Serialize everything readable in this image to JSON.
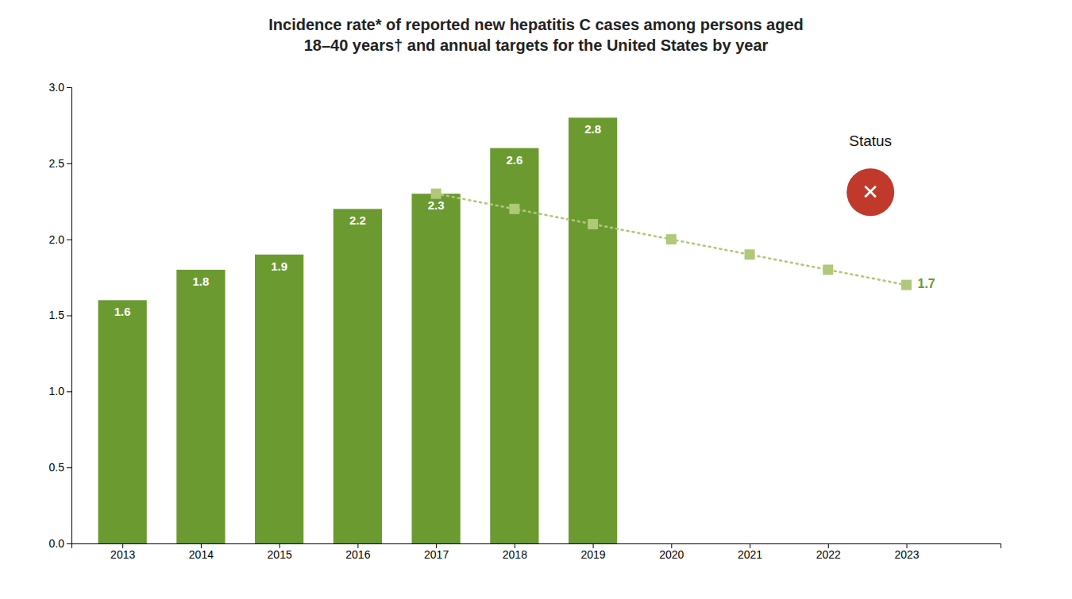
{
  "chart_data": {
    "type": "bar",
    "title": "Incidence rate* of reported new hepatitis C cases among persons aged\n18–40 years† and annual targets for the United States by year",
    "series": [
      {
        "type": "bar",
        "color": "#6b9a30",
        "data_labels": true,
        "x": [
          2013,
          2014,
          2015,
          2016,
          2017,
          2018,
          2019
        ],
        "values": [
          1.6,
          1.8,
          1.9,
          2.2,
          2.3,
          2.6,
          2.8
        ]
      },
      {
        "type": "line",
        "color": "#b0c878",
        "marker": "square",
        "line_style": "dotted",
        "x": [
          2017,
          2018,
          2019,
          2020,
          2021,
          2022,
          2023
        ],
        "values": [
          2.3,
          2.2,
          2.1,
          2.0,
          1.9,
          1.8,
          1.7
        ]
      }
    ],
    "xlim": [
      2012.35,
      2024.2
    ],
    "xticks": [
      2013,
      2014,
      2015,
      2016,
      2017,
      2018,
      2019,
      2020,
      2021,
      2022,
      2023
    ],
    "ylim": [
      0.0,
      3.0
    ],
    "yticks": [
      {
        "value": 0.0,
        "label": "0.0"
      },
      0.5,
      {
        "value": 1.0,
        "label": "1.0"
      },
      1.5,
      {
        "value": 2.0,
        "label": "2.0"
      },
      2.5,
      {
        "value": 3.0,
        "label": "3.0"
      }
    ],
    "grid": false,
    "annotations": [
      {
        "text": "1.7",
        "color": "#6b9a30"
      },
      {
        "text": "Status"
      },
      {
        "text": "✕",
        "color": "#c0392b"
      }
    ]
  }
}
